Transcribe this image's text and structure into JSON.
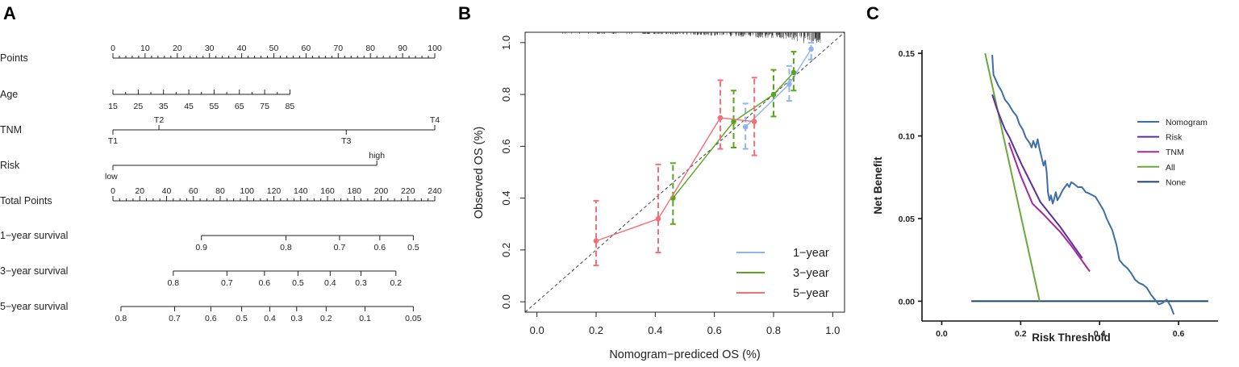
{
  "panels": {
    "a": "A",
    "b": "B",
    "c": "C"
  },
  "chart_data": [
    {
      "type": "nomogram",
      "rows": [
        {
          "label": "Points",
          "min": 0,
          "max": 100,
          "ticks": [
            "0",
            "10",
            "20",
            "30",
            "40",
            "50",
            "60",
            "70",
            "80",
            "90",
            "100"
          ],
          "minor": 50
        },
        {
          "label": "Age",
          "vmin": 15,
          "vmax": 85,
          "ticks": [
            "15",
            "25",
            "35",
            "45",
            "55",
            "65",
            "75",
            "85"
          ],
          "minor": 14,
          "points_at_max": 55
        },
        {
          "label": "TNM",
          "categories": [
            {
              "name": "T1",
              "points": 0,
              "side": "below"
            },
            {
              "name": "T2",
              "points": 14.3,
              "side": "above"
            },
            {
              "name": "T3",
              "points": 72.5,
              "side": "below"
            },
            {
              "name": "T4",
              "points": 100,
              "side": "above"
            }
          ]
        },
        {
          "label": "Risk",
          "categories": [
            {
              "name": "low",
              "points": 0,
              "side": "below"
            },
            {
              "name": "high",
              "points": 82,
              "side": "above"
            }
          ]
        },
        {
          "label": "Total Points",
          "min": 0,
          "max": 240,
          "ticks": [
            "0",
            "20",
            "40",
            "60",
            "80",
            "100",
            "120",
            "140",
            "160",
            "180",
            "200",
            "220",
            "240"
          ],
          "minor": 48
        },
        {
          "label": "1−year survival",
          "ticks": [
            {
              "v": "0.9",
              "t": 66
            },
            {
              "v": "0.8",
              "t": 129
            },
            {
              "v": "0.7",
              "t": 169
            },
            {
              "v": "0.6",
              "t": 199
            },
            {
              "v": "0.5",
              "t": 224
            }
          ]
        },
        {
          "label": "3−year survival",
          "ticks": [
            {
              "v": "0.8",
              "t": 45
            },
            {
              "v": "0.7",
              "t": 85
            },
            {
              "v": "0.6",
              "t": 113
            },
            {
              "v": "0.5",
              "t": 138
            },
            {
              "v": "0.4",
              "t": 162
            },
            {
              "v": "0.3",
              "t": 185
            },
            {
              "v": "0.2",
              "t": 211
            }
          ]
        },
        {
          "label": "5−year survival",
          "ticks": [
            {
              "v": "0.8",
              "t": 6
            },
            {
              "v": "0.7",
              "t": 46
            },
            {
              "v": "0.6",
              "t": 73
            },
            {
              "v": "0.5",
              "t": 96
            },
            {
              "v": "0.4",
              "t": 117
            },
            {
              "v": "0.3",
              "t": 137
            },
            {
              "v": "0.2",
              "t": 159
            },
            {
              "v": "0.1",
              "t": 188
            },
            {
              "v": "0.05",
              "t": 224
            }
          ]
        }
      ]
    },
    {
      "type": "line",
      "xlabel": "Nomogram−prediced OS (%)",
      "ylabel": "Observed OS (%)",
      "xlim": [
        -0.04,
        1.04
      ],
      "ylim": [
        -0.04,
        1.04
      ],
      "xticks": [
        "0.0",
        "0.2",
        "0.4",
        "0.6",
        "0.8",
        "1.0"
      ],
      "yticks": [
        "0.0",
        "0.2",
        "0.4",
        "0.6",
        "0.8",
        "1.0"
      ],
      "reference": "diagonal y=x (dashed)",
      "legend_position": "bottom-right",
      "series": [
        {
          "name": "1−year",
          "color": "#8fb4e8",
          "points": [
            {
              "x": 0.705,
              "y": 0.675,
              "lo": 0.59,
              "hi": 0.765
            },
            {
              "x": 0.853,
              "y": 0.84,
              "lo": 0.775,
              "hi": 0.91
            },
            {
              "x": 0.927,
              "y": 0.975,
              "lo": 0.935,
              "hi": 1.0
            }
          ]
        },
        {
          "name": "3−year",
          "color": "#5aa51f",
          "points": [
            {
              "x": 0.46,
              "y": 0.4,
              "lo": 0.3,
              "hi": 0.535
            },
            {
              "x": 0.665,
              "y": 0.695,
              "lo": 0.595,
              "hi": 0.815
            },
            {
              "x": 0.8,
              "y": 0.8,
              "lo": 0.715,
              "hi": 0.895
            },
            {
              "x": 0.868,
              "y": 0.885,
              "lo": 0.815,
              "hi": 0.965
            }
          ]
        },
        {
          "name": "5−year",
          "color": "#f07078",
          "points": [
            {
              "x": 0.2,
              "y": 0.235,
              "lo": 0.14,
              "hi": 0.39
            },
            {
              "x": 0.41,
              "y": 0.32,
              "lo": 0.19,
              "hi": 0.53
            },
            {
              "x": 0.62,
              "y": 0.71,
              "lo": 0.59,
              "hi": 0.855
            },
            {
              "x": 0.735,
              "y": 0.695,
              "lo": 0.565,
              "hi": 0.865
            }
          ]
        }
      ]
    },
    {
      "type": "line",
      "xlabel": "Risk Threshold",
      "ylabel": "Net Benefit",
      "xlim": [
        -0.05,
        0.7
      ],
      "ylim": [
        -0.012,
        0.152
      ],
      "xticks": [
        "0.0",
        "0.2",
        "0.4",
        "0.6"
      ],
      "yticks": [
        "0.00",
        "0.05",
        "0.10",
        "0.15"
      ],
      "legend_position": "right",
      "series": [
        {
          "name": "Nomogram",
          "color": "#3d6ea5",
          "points": [
            [
              0.128,
              0.149
            ],
            [
              0.131,
              0.137
            ],
            [
              0.137,
              0.134
            ],
            [
              0.142,
              0.131
            ],
            [
              0.152,
              0.127
            ],
            [
              0.16,
              0.122
            ],
            [
              0.17,
              0.119
            ],
            [
              0.18,
              0.115
            ],
            [
              0.19,
              0.112
            ],
            [
              0.197,
              0.107
            ],
            [
              0.205,
              0.104
            ],
            [
              0.213,
              0.099
            ],
            [
              0.222,
              0.096
            ],
            [
              0.228,
              0.093
            ],
            [
              0.232,
              0.097
            ],
            [
              0.238,
              0.093
            ],
            [
              0.243,
              0.098
            ],
            [
              0.248,
              0.092
            ],
            [
              0.253,
              0.087
            ],
            [
              0.258,
              0.082
            ],
            [
              0.262,
              0.085
            ],
            [
              0.266,
              0.078
            ],
            [
              0.269,
              0.066
            ],
            [
              0.273,
              0.061
            ],
            [
              0.277,
              0.064
            ],
            [
              0.281,
              0.059
            ],
            [
              0.285,
              0.062
            ],
            [
              0.289,
              0.066
            ],
            [
              0.293,
              0.061
            ],
            [
              0.3,
              0.064
            ],
            [
              0.306,
              0.067
            ],
            [
              0.312,
              0.069
            ],
            [
              0.318,
              0.071
            ],
            [
              0.323,
              0.069
            ],
            [
              0.328,
              0.072
            ],
            [
              0.335,
              0.071
            ],
            [
              0.345,
              0.069
            ],
            [
              0.355,
              0.069
            ],
            [
              0.365,
              0.066
            ],
            [
              0.375,
              0.065
            ],
            [
              0.39,
              0.063
            ],
            [
              0.4,
              0.059
            ],
            [
              0.41,
              0.055
            ],
            [
              0.418,
              0.05
            ],
            [
              0.424,
              0.047
            ],
            [
              0.432,
              0.043
            ],
            [
              0.438,
              0.038
            ],
            [
              0.443,
              0.034
            ],
            [
              0.446,
              0.03
            ],
            [
              0.45,
              0.025
            ],
            [
              0.46,
              0.022
            ],
            [
              0.47,
              0.02
            ],
            [
              0.48,
              0.017
            ],
            [
              0.49,
              0.013
            ],
            [
              0.5,
              0.011
            ],
            [
              0.51,
              0.01
            ],
            [
              0.52,
              0.008
            ],
            [
              0.53,
              0.004
            ],
            [
              0.54,
              0.001
            ],
            [
              0.55,
              -0.002
            ],
            [
              0.56,
              -0.001
            ],
            [
              0.57,
              0.001
            ],
            [
              0.58,
              -0.003
            ],
            [
              0.588,
              -0.008
            ]
          ]
        },
        {
          "name": "Risk",
          "color": "#5a2f9e",
          "points": [
            [
              0.128,
              0.125
            ],
            [
              0.139,
              0.117
            ],
            [
              0.15,
              0.11
            ],
            [
              0.16,
              0.104
            ],
            [
              0.172,
              0.099
            ],
            [
              0.2,
              0.084
            ],
            [
              0.25,
              0.06
            ],
            [
              0.3,
              0.045
            ],
            [
              0.356,
              0.026
            ]
          ]
        },
        {
          "name": "TNM",
          "color": "#a5299a",
          "points": [
            [
              0.17,
              0.096
            ],
            [
              0.2,
              0.076
            ],
            [
              0.23,
              0.059
            ],
            [
              0.26,
              0.052
            ],
            [
              0.3,
              0.042
            ],
            [
              0.33,
              0.033
            ],
            [
              0.375,
              0.018
            ]
          ]
        },
        {
          "name": "All",
          "color": "#6aa83a",
          "points": [
            [
              0.11,
              0.15
            ],
            [
              0.248,
              0.0
            ]
          ]
        },
        {
          "name": "None",
          "color": "#1d4564",
          "points": [
            [
              0.075,
              0.0
            ],
            [
              0.675,
              0.0
            ]
          ]
        }
      ]
    }
  ]
}
